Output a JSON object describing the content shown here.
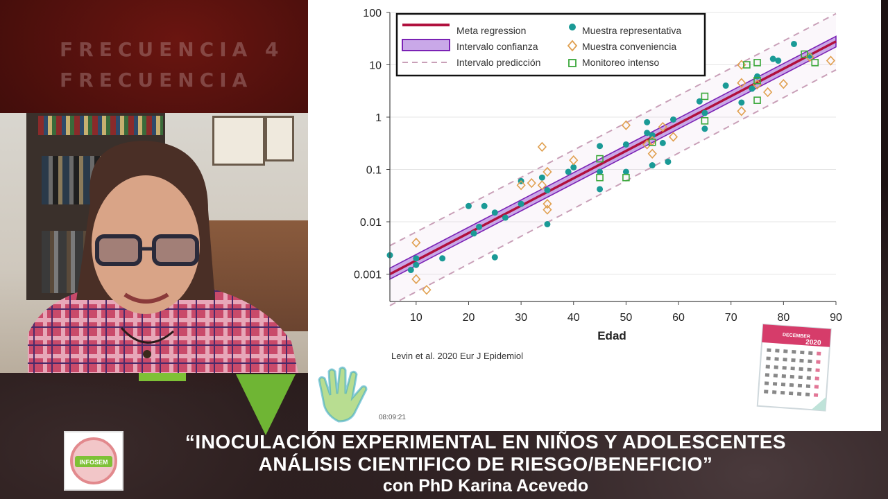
{
  "banner": {
    "line1": "FRECUENCIA 4",
    "line2": "FRECUENCIA"
  },
  "footer": {
    "title_line1": "“INOCULACIÓN EXPERIMENTAL EN NIÑOS Y ADOLESCENTES",
    "title_line2": "ANÁLISIS CIENTIFICO DE RIESGO/BENEFICIO”",
    "title_line3": "con PhD Karina Acevedo"
  },
  "slide": {
    "citation": "Levin et al. 2020 Eur J Epidemiol",
    "timestamp": "08:09:21",
    "calendar_month": "DECEMBER",
    "calendar_year": "2020",
    "logo_text": "INFOSEM"
  },
  "colors": {
    "regression": "#b0103e",
    "confidence_fill": "#c9a8e8",
    "confidence_edge": "#7b22b5",
    "prediction": "#c9a0b8",
    "representative": "#1a9a96",
    "convenience": "#e0a050",
    "intensive": "#3aa83a",
    "accent_green": "#7ec136"
  },
  "chart_data": {
    "type": "scatter",
    "xlabel": "Edad",
    "ylabel": "",
    "xlim": [
      5,
      90
    ],
    "ylim": [
      0.0003,
      100
    ],
    "yscale": "log",
    "x_ticks": [
      "10",
      "20",
      "30",
      "40",
      "50",
      "60",
      "70",
      "80",
      "90"
    ],
    "x_tick_values": [
      10,
      20,
      30,
      40,
      50,
      60,
      70,
      80,
      90
    ],
    "y_ticks": [
      "100",
      "10",
      "1",
      "0.1",
      "0.01",
      "0.001"
    ],
    "y_tick_values": [
      100,
      10,
      1,
      0.1,
      0.01,
      0.001
    ],
    "grid": "horizontal",
    "legend_position": "top-left",
    "legend": {
      "regression": "Meta regression",
      "confidence": "Intervalo confianza",
      "prediction": "Intervalo predicción",
      "representative": "Muestra representativa",
      "convenience": "Muestra conveniencia",
      "intensive": "Monitoreo intenso"
    },
    "regression_line": {
      "x": [
        5,
        90
      ],
      "y": [
        0.001,
        28
      ]
    },
    "confidence_interval": {
      "x": [
        5,
        90
      ],
      "lower": [
        0.0008,
        22
      ],
      "upper": [
        0.0013,
        35
      ]
    },
    "prediction_interval": {
      "x": [
        5,
        90
      ],
      "lower": [
        0.00025,
        8
      ],
      "upper": [
        0.0035,
        95
      ]
    },
    "series": [
      {
        "name": "Muestra representativa",
        "marker": "circle",
        "points": [
          [
            5,
            0.0023
          ],
          [
            9,
            0.0012
          ],
          [
            10,
            0.0015
          ],
          [
            10,
            0.002
          ],
          [
            15,
            0.002
          ],
          [
            20,
            0.02
          ],
          [
            21,
            0.006
          ],
          [
            22,
            0.008
          ],
          [
            23,
            0.02
          ],
          [
            25,
            0.0021
          ],
          [
            25,
            0.015
          ],
          [
            27,
            0.012
          ],
          [
            30,
            0.06
          ],
          [
            30,
            0.022
          ],
          [
            34,
            0.07
          ],
          [
            35,
            0.04
          ],
          [
            35,
            0.009
          ],
          [
            39,
            0.09
          ],
          [
            40,
            0.11
          ],
          [
            45,
            0.28
          ],
          [
            45,
            0.09
          ],
          [
            45,
            0.042
          ],
          [
            50,
            0.3
          ],
          [
            50,
            0.09
          ],
          [
            54,
            0.5
          ],
          [
            54,
            0.8
          ],
          [
            55,
            0.12
          ],
          [
            55,
            0.45
          ],
          [
            57,
            0.32
          ],
          [
            58,
            0.14
          ],
          [
            59,
            0.9
          ],
          [
            64,
            2.0
          ],
          [
            65,
            1.2
          ],
          [
            65,
            0.6
          ],
          [
            69,
            4.0
          ],
          [
            72,
            1.9
          ],
          [
            74,
            3.5
          ],
          [
            75,
            6.0
          ],
          [
            78,
            13
          ],
          [
            79,
            12
          ],
          [
            82,
            25
          ],
          [
            85,
            15
          ]
        ]
      },
      {
        "name": "Muestra conveniencia",
        "marker": "diamond",
        "points": [
          [
            10,
            0.004
          ],
          [
            10,
            0.0008
          ],
          [
            12,
            0.0005
          ],
          [
            30,
            0.05
          ],
          [
            32,
            0.055
          ],
          [
            34,
            0.27
          ],
          [
            34,
            0.05
          ],
          [
            35,
            0.09
          ],
          [
            35,
            0.022
          ],
          [
            35,
            0.017
          ],
          [
            40,
            0.15
          ],
          [
            50,
            0.7
          ],
          [
            54,
            0.3
          ],
          [
            55,
            0.2
          ],
          [
            55,
            0.35
          ],
          [
            57,
            0.65
          ],
          [
            59,
            0.42
          ],
          [
            72,
            10
          ],
          [
            72,
            4.5
          ],
          [
            72,
            1.3
          ],
          [
            75,
            4.2
          ],
          [
            77,
            3.0
          ],
          [
            80,
            4.3
          ],
          [
            85,
            14
          ],
          [
            89,
            12
          ]
        ]
      },
      {
        "name": "Monitoreo intenso",
        "marker": "square",
        "points": [
          [
            45,
            0.16
          ],
          [
            45,
            0.07
          ],
          [
            50,
            0.07
          ],
          [
            55,
            0.33
          ],
          [
            65,
            2.5
          ],
          [
            65,
            0.85
          ],
          [
            73,
            10
          ],
          [
            75,
            11
          ],
          [
            75,
            5
          ],
          [
            75,
            2.1
          ],
          [
            84,
            16
          ],
          [
            86,
            11
          ]
        ]
      }
    ]
  }
}
